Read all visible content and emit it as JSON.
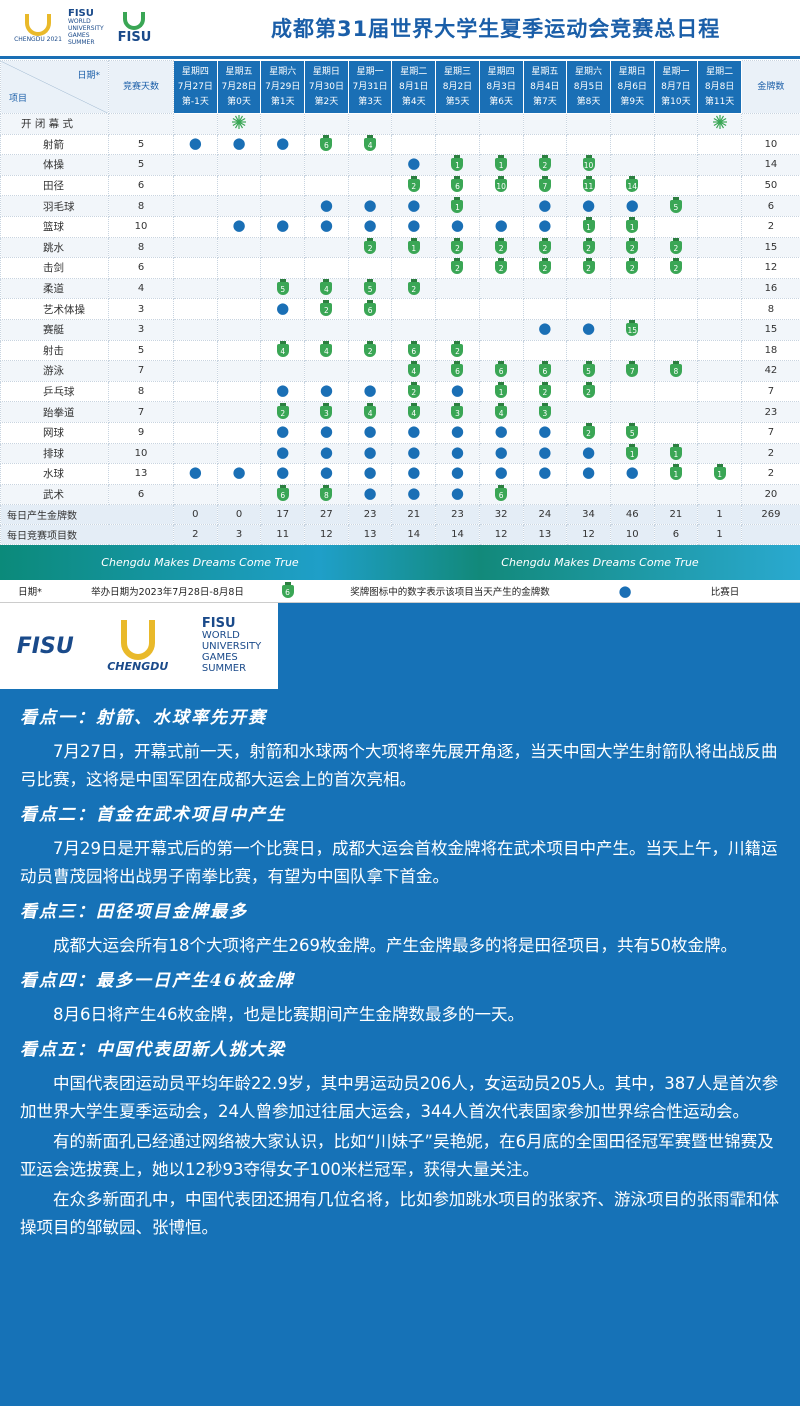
{
  "header": {
    "title": "成都第31届世界大学生夏季运动会竞赛总日程",
    "logo_year": "CHENGDU 2021",
    "logo_fisu": "FISU",
    "logo_lines": [
      "WORLD",
      "UNIVERSITY",
      "GAMES",
      "SUMMER"
    ],
    "logo_right": "FISU"
  },
  "schedule": {
    "corner_top": "日期*",
    "corner_bottom": "项目",
    "days_col": "竞赛天数",
    "medals_col": "金牌数",
    "opening": "开 闭 幕 式",
    "dates": [
      {
        "weekday": "星期四",
        "date": "7月27日",
        "day": "第-1天"
      },
      {
        "weekday": "星期五",
        "date": "7月28日",
        "day": "第0天"
      },
      {
        "weekday": "星期六",
        "date": "7月29日",
        "day": "第1天"
      },
      {
        "weekday": "星期日",
        "date": "7月30日",
        "day": "第2天"
      },
      {
        "weekday": "星期一",
        "date": "7月31日",
        "day": "第3天"
      },
      {
        "weekday": "星期二",
        "date": "8月1日",
        "day": "第4天"
      },
      {
        "weekday": "星期三",
        "date": "8月2日",
        "day": "第5天"
      },
      {
        "weekday": "星期四",
        "date": "8月3日",
        "day": "第6天"
      },
      {
        "weekday": "星期五",
        "date": "8月4日",
        "day": "第7天"
      },
      {
        "weekday": "星期六",
        "date": "8月5日",
        "day": "第8天"
      },
      {
        "weekday": "星期日",
        "date": "8月6日",
        "day": "第9天"
      },
      {
        "weekday": "星期一",
        "date": "8月7日",
        "day": "第10天"
      },
      {
        "weekday": "星期二",
        "date": "8月8日",
        "day": "第11天"
      }
    ],
    "sports": [
      {
        "name": "射箭",
        "days": 5,
        "cells": [
          "●",
          "●",
          "●",
          6,
          4,
          null,
          null,
          null,
          null,
          null,
          null,
          null,
          null
        ],
        "medals": 10
      },
      {
        "name": "体操",
        "days": 5,
        "cells": [
          null,
          null,
          null,
          null,
          null,
          "●",
          1,
          1,
          2,
          10,
          null,
          null,
          null
        ],
        "medals": 14
      },
      {
        "name": "田径",
        "days": 6,
        "cells": [
          null,
          null,
          null,
          null,
          null,
          2,
          6,
          10,
          7,
          11,
          14,
          null,
          null
        ],
        "medals": 50
      },
      {
        "name": "羽毛球",
        "days": 8,
        "cells": [
          null,
          null,
          null,
          "●",
          "●",
          "●",
          1,
          null,
          "●",
          "●",
          "●",
          5,
          null
        ],
        "medals": 6
      },
      {
        "name": "篮球",
        "days": 10,
        "cells": [
          null,
          "●",
          "●",
          "●",
          "●",
          "●",
          "●",
          "●",
          "●",
          1,
          1,
          null,
          null
        ],
        "medals": 2
      },
      {
        "name": "跳水",
        "days": 8,
        "cells": [
          null,
          null,
          null,
          null,
          2,
          1,
          2,
          2,
          2,
          2,
          2,
          2,
          null
        ],
        "medals": 15
      },
      {
        "name": "击剑",
        "days": 6,
        "cells": [
          null,
          null,
          null,
          null,
          null,
          null,
          2,
          2,
          2,
          2,
          2,
          2,
          null
        ],
        "medals": 12
      },
      {
        "name": "柔道",
        "days": 4,
        "cells": [
          null,
          null,
          5,
          4,
          5,
          2,
          null,
          null,
          null,
          null,
          null,
          null,
          null
        ],
        "medals": 16
      },
      {
        "name": "艺术体操",
        "days": 3,
        "cells": [
          null,
          null,
          "●",
          2,
          6,
          null,
          null,
          null,
          null,
          null,
          null,
          null,
          null
        ],
        "medals": 8
      },
      {
        "name": "赛艇",
        "days": 3,
        "cells": [
          null,
          null,
          null,
          null,
          null,
          null,
          null,
          null,
          "●",
          "●",
          15,
          null,
          null
        ],
        "medals": 15
      },
      {
        "name": "射击",
        "days": 5,
        "cells": [
          null,
          null,
          4,
          4,
          2,
          6,
          2,
          null,
          null,
          null,
          null,
          null,
          null
        ],
        "medals": 18
      },
      {
        "name": "游泳",
        "days": 7,
        "cells": [
          null,
          null,
          null,
          null,
          null,
          4,
          6,
          6,
          6,
          5,
          7,
          8,
          null
        ],
        "medals": 42
      },
      {
        "name": "乒乓球",
        "days": 8,
        "cells": [
          null,
          null,
          "●",
          "●",
          "●",
          2,
          "●",
          1,
          2,
          2,
          null,
          null,
          null
        ],
        "medals": 7
      },
      {
        "name": "跆拳道",
        "days": 7,
        "cells": [
          null,
          null,
          2,
          3,
          4,
          4,
          3,
          4,
          3,
          null,
          null,
          null,
          null
        ],
        "medals": 23
      },
      {
        "name": "网球",
        "days": 9,
        "cells": [
          null,
          null,
          "●",
          "●",
          "●",
          "●",
          "●",
          "●",
          "●",
          2,
          5,
          null,
          null
        ],
        "medals": 7
      },
      {
        "name": "排球",
        "days": 10,
        "cells": [
          null,
          null,
          "●",
          "●",
          "●",
          "●",
          "●",
          "●",
          "●",
          "●",
          1,
          1,
          null
        ],
        "medals": 2
      },
      {
        "name": "水球",
        "days": 13,
        "cells": [
          "●",
          "●",
          "●",
          "●",
          "●",
          "●",
          "●",
          "●",
          "●",
          "●",
          "●",
          1,
          1
        ],
        "medals": 2
      },
      {
        "name": "武术",
        "days": 6,
        "cells": [
          null,
          null,
          6,
          8,
          "●",
          "●",
          "●",
          6,
          null,
          null,
          null,
          null,
          null
        ],
        "medals": 20
      }
    ],
    "totals": [
      {
        "label": "每日产生金牌数",
        "values": [
          0,
          0,
          17,
          27,
          23,
          21,
          23,
          32,
          24,
          34,
          46,
          21,
          1
        ],
        "total": 269
      },
      {
        "label": "每日竞赛项目数",
        "values": [
          2,
          3,
          11,
          12,
          13,
          14,
          14,
          12,
          13,
          12,
          10,
          6,
          1
        ]
      }
    ]
  },
  "banner": [
    "Chengdu Makes Dreams Come True",
    "Chengdu Makes Dreams Come True"
  ],
  "legend": {
    "date_label": "日期*",
    "date_text": "举办日期为2023年7月28日-8月8日",
    "medal_sample": 6,
    "medal_text": "奖牌图标中的数字表示该项目当天产生的金牌数",
    "dot_text": "比赛日"
  },
  "logos": {
    "fisu": "FISU",
    "city": "CHENGDU",
    "brand": "FISU",
    "lines": [
      "WORLD",
      "UNIVERSITY",
      "GAMES",
      "SUMMER"
    ]
  },
  "sections": [
    {
      "heading": "看点一：射箭、水球率先开赛",
      "paragraphs": [
        "7月27日，开幕式前一天，射箭和水球两个大项将率先展开角逐，当天中国大学生射箭队将出战反曲弓比赛，这将是中国军团在成都大运会上的首次亮相。"
      ]
    },
    {
      "heading": "看点二：首金在武术项目中产生",
      "paragraphs": [
        "7月29日是开幕式后的第一个比赛日，成都大运会首枚金牌将在武术项目中产生。当天上午，川籍运动员曹茂园将出战男子南拳比赛，有望为中国队拿下首金。"
      ]
    },
    {
      "heading": "看点三：田径项目金牌最多",
      "paragraphs": [
        "成都大运会所有18个大项将产生269枚金牌。产生金牌最多的将是田径项目，共有50枚金牌。"
      ]
    },
    {
      "heading": "看点四：最多一日产生46枚金牌",
      "paragraphs": [
        "8月6日将产生46枚金牌，也是比赛期间产生金牌数最多的一天。"
      ]
    },
    {
      "heading": "看点五：中国代表团新人挑大梁",
      "paragraphs": [
        "中国代表团运动员平均年龄22.9岁，其中男运动员206人，女运动员205人。其中，387人是首次参加世界大学生夏季运动会，24人曾参加过往届大运会，344人首次代表国家参加世界综合性运动会。",
        "有的新面孔已经通过网络被大家认识，比如“川妹子”吴艳妮，在6月底的全国田径冠军赛暨世锦赛及亚运会选拔赛上，她以12秒93夺得女子100米栏冠军，获得大量关注。",
        "在众多新面孔中，中国代表团还拥有几位名将，比如参加跳水项目的张家齐、游泳项目的张雨霏和体操项目的邹敏园、张博恒。"
      ]
    }
  ]
}
